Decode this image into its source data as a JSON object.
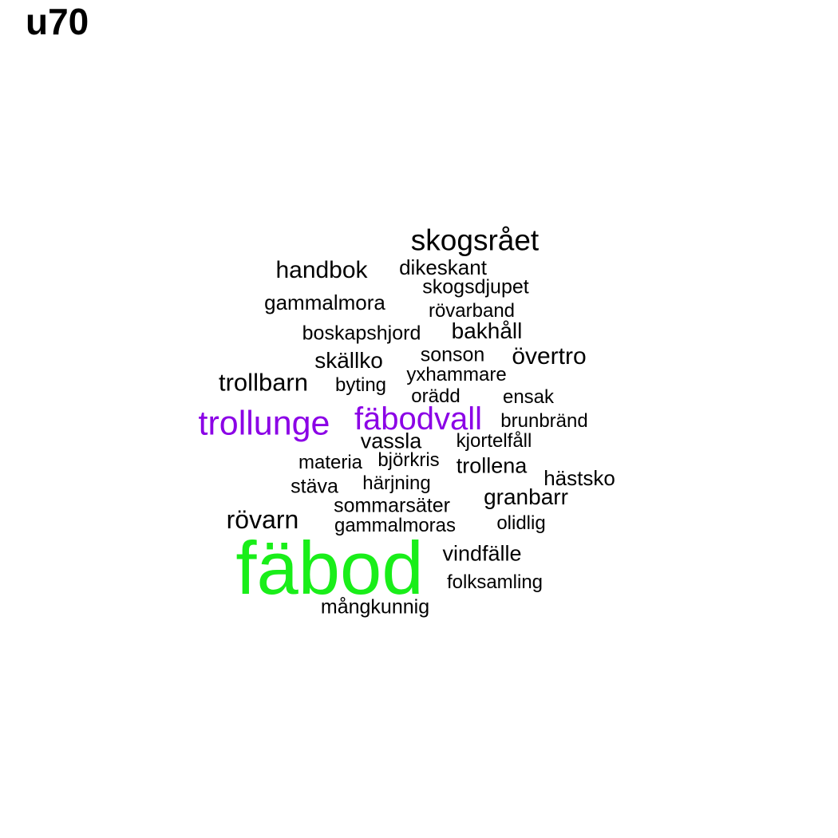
{
  "title": "u70",
  "colors": {
    "default": "#000000",
    "purple": "#8b00e6",
    "green": "#19ee19"
  },
  "words": [
    {
      "text": "fäbod",
      "weight": 100,
      "color": "green"
    },
    {
      "text": "trollunge",
      "weight": 48,
      "color": "purple"
    },
    {
      "text": "fäbodvall",
      "weight": 48,
      "color": "purple"
    },
    {
      "text": "skogsrået",
      "weight": 40,
      "color": "default"
    },
    {
      "text": "rövarn",
      "weight": 36,
      "color": "default"
    },
    {
      "text": "trollbarn",
      "weight": 34,
      "color": "default"
    },
    {
      "text": "handbok",
      "weight": 33,
      "color": "default"
    },
    {
      "text": "övertro",
      "weight": 33,
      "color": "default"
    },
    {
      "text": "granbarr",
      "weight": 31,
      "color": "default"
    },
    {
      "text": "skällko",
      "weight": 30,
      "color": "default"
    },
    {
      "text": "bakhåll",
      "weight": 30,
      "color": "default"
    },
    {
      "text": "vindfälle",
      "weight": 30,
      "color": "default"
    },
    {
      "text": "vassla",
      "weight": 30,
      "color": "default"
    },
    {
      "text": "trollena",
      "weight": 30,
      "color": "default"
    },
    {
      "text": "gammalmora",
      "weight": 28,
      "color": "default"
    },
    {
      "text": "hästsko",
      "weight": 28,
      "color": "default"
    },
    {
      "text": "dikeskant",
      "weight": 28,
      "color": "default"
    },
    {
      "text": "skogsdjupet",
      "weight": 27,
      "color": "default"
    },
    {
      "text": "boskapshjord",
      "weight": 27,
      "color": "default"
    },
    {
      "text": "sonson",
      "weight": 27,
      "color": "default"
    },
    {
      "text": "stäva",
      "weight": 27,
      "color": "default"
    },
    {
      "text": "sommarsäter",
      "weight": 27,
      "color": "default"
    },
    {
      "text": "mångkunnig",
      "weight": 27,
      "color": "default"
    },
    {
      "text": "rövarband",
      "weight": 26,
      "color": "default"
    },
    {
      "text": "yxhammare",
      "weight": 26,
      "color": "default"
    },
    {
      "text": "brunbränd",
      "weight": 26,
      "color": "default"
    },
    {
      "text": "materia",
      "weight": 26,
      "color": "default"
    },
    {
      "text": "härjning",
      "weight": 26,
      "color": "default"
    },
    {
      "text": "folksamling",
      "weight": 26,
      "color": "default"
    },
    {
      "text": "gammalmoras",
      "weight": 26,
      "color": "default"
    },
    {
      "text": "byting",
      "weight": 25,
      "color": "default"
    },
    {
      "text": "orädd",
      "weight": 25,
      "color": "default"
    },
    {
      "text": "ensak",
      "weight": 25,
      "color": "default"
    },
    {
      "text": "kjortelfåll",
      "weight": 25,
      "color": "default"
    },
    {
      "text": "björkris",
      "weight": 25,
      "color": "default"
    },
    {
      "text": "olidlig",
      "weight": 25,
      "color": "default"
    }
  ]
}
